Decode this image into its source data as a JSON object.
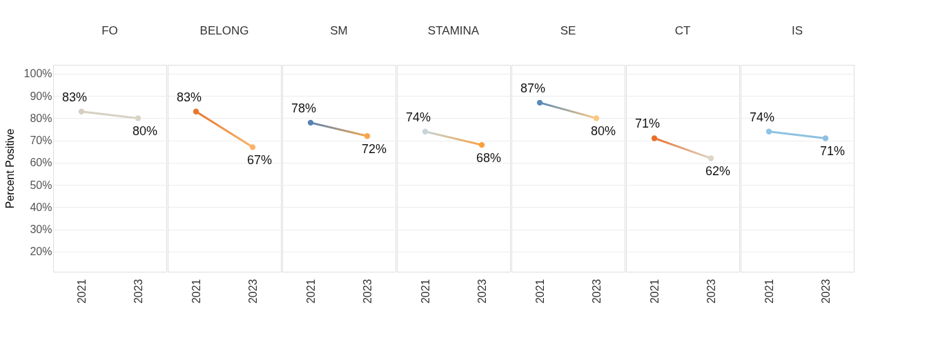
{
  "chart_data": [
    {
      "type": "line",
      "title": "FO",
      "ylabel": "Percent Positive",
      "categories": [
        "2021",
        "2023"
      ],
      "ylim": [
        11,
        104
      ],
      "yticks": [
        {
          "value": 20,
          "label": "20%"
        },
        {
          "value": 30,
          "label": "30%"
        },
        {
          "value": 40,
          "label": "40%"
        },
        {
          "value": 50,
          "label": "50%"
        },
        {
          "value": 60,
          "label": "60%"
        },
        {
          "value": 70,
          "label": "70%"
        },
        {
          "value": 80,
          "label": "80%"
        },
        {
          "value": 90,
          "label": "90%"
        },
        {
          "value": 100,
          "label": "100%"
        }
      ],
      "grid": "y",
      "marker": "circle",
      "series": [
        {
          "values": [
            83,
            80
          ],
          "colors": [
            "#d4cfc0",
            "#d9d4c6"
          ],
          "value_labels": [
            "83%",
            "80%"
          ]
        }
      ]
    },
    {
      "type": "line",
      "title": "BELONG",
      "tick_labels": "x",
      "categories": [
        "2021",
        "2023"
      ],
      "ylim": [
        11,
        104
      ],
      "yticks": [
        {
          "value": 20,
          "label": null
        },
        {
          "value": 30,
          "label": null
        },
        {
          "value": 40,
          "label": null
        },
        {
          "value": 50,
          "label": null
        },
        {
          "value": 60,
          "label": null
        },
        {
          "value": 70,
          "label": null
        },
        {
          "value": 80,
          "label": null
        },
        {
          "value": 90,
          "label": null
        },
        {
          "value": 100,
          "label": null
        }
      ],
      "grid": "y",
      "marker": "circle",
      "series": [
        {
          "values": [
            83,
            67
          ],
          "colors": [
            "#e8762d",
            "#f9b36a"
          ],
          "value_labels": [
            "83%",
            "67%"
          ]
        }
      ]
    },
    {
      "type": "line",
      "title": "SM",
      "tick_labels": "x",
      "categories": [
        "2021",
        "2023"
      ],
      "ylim": [
        11,
        104
      ],
      "yticks": [
        {
          "value": 20,
          "label": null
        },
        {
          "value": 30,
          "label": null
        },
        {
          "value": 40,
          "label": null
        },
        {
          "value": 50,
          "label": null
        },
        {
          "value": 60,
          "label": null
        },
        {
          "value": 70,
          "label": null
        },
        {
          "value": 80,
          "label": null
        },
        {
          "value": 90,
          "label": null
        },
        {
          "value": 100,
          "label": null
        }
      ],
      "grid": "y",
      "marker": "circle",
      "series": [
        {
          "values": [
            78,
            72
          ],
          "colors": [
            "#5583b5",
            "#f7a54c"
          ],
          "value_labels": [
            "78%",
            "72%"
          ]
        }
      ]
    },
    {
      "type": "line",
      "title": "STAMINA",
      "tick_labels": "x",
      "categories": [
        "2021",
        "2023"
      ],
      "ylim": [
        11,
        104
      ],
      "yticks": [
        {
          "value": 20,
          "label": null
        },
        {
          "value": 30,
          "label": null
        },
        {
          "value": 40,
          "label": null
        },
        {
          "value": 50,
          "label": null
        },
        {
          "value": 60,
          "label": null
        },
        {
          "value": 70,
          "label": null
        },
        {
          "value": 80,
          "label": null
        },
        {
          "value": 90,
          "label": null
        },
        {
          "value": 100,
          "label": null
        }
      ],
      "grid": "y",
      "marker": "circle",
      "series": [
        {
          "values": [
            74,
            68
          ],
          "colors": [
            "#c5d6d9",
            "#f7a040"
          ],
          "value_labels": [
            "74%",
            "68%"
          ]
        }
      ]
    },
    {
      "type": "line",
      "title": "SE",
      "tick_labels": "x",
      "categories": [
        "2021",
        "2023"
      ],
      "ylim": [
        11,
        104
      ],
      "yticks": [
        {
          "value": 20,
          "label": null
        },
        {
          "value": 30,
          "label": null
        },
        {
          "value": 40,
          "label": null
        },
        {
          "value": 50,
          "label": null
        },
        {
          "value": 60,
          "label": null
        },
        {
          "value": 70,
          "label": null
        },
        {
          "value": 80,
          "label": null
        },
        {
          "value": 90,
          "label": null
        },
        {
          "value": 100,
          "label": null
        }
      ],
      "grid": "y",
      "marker": "circle",
      "series": [
        {
          "values": [
            87,
            80
          ],
          "colors": [
            "#5a8bbb",
            "#fac880"
          ],
          "value_labels": [
            "87%",
            "80%"
          ]
        }
      ]
    },
    {
      "type": "line",
      "title": "CT",
      "tick_labels": "x",
      "categories": [
        "2021",
        "2023"
      ],
      "ylim": [
        11,
        104
      ],
      "yticks": [
        {
          "value": 20,
          "label": null
        },
        {
          "value": 30,
          "label": null
        },
        {
          "value": 40,
          "label": null
        },
        {
          "value": 50,
          "label": null
        },
        {
          "value": 60,
          "label": null
        },
        {
          "value": 70,
          "label": null
        },
        {
          "value": 80,
          "label": null
        },
        {
          "value": 90,
          "label": null
        },
        {
          "value": 100,
          "label": null
        }
      ],
      "grid": "y",
      "marker": "circle",
      "series": [
        {
          "values": [
            71,
            62
          ],
          "colors": [
            "#e8702a",
            "#dcd5c8"
          ],
          "value_labels": [
            "71%",
            "62%"
          ]
        }
      ]
    },
    {
      "type": "line",
      "title": "IS",
      "tick_labels": "x",
      "categories": [
        "2021",
        "2023"
      ],
      "ylim": [
        11,
        104
      ],
      "yticks": [
        {
          "value": 20,
          "label": null
        },
        {
          "value": 30,
          "label": null
        },
        {
          "value": 40,
          "label": null
        },
        {
          "value": 50,
          "label": null
        },
        {
          "value": 60,
          "label": null
        },
        {
          "value": 70,
          "label": null
        },
        {
          "value": 80,
          "label": null
        },
        {
          "value": 90,
          "label": null
        },
        {
          "value": 100,
          "label": null
        }
      ],
      "grid": "y",
      "marker": "circle",
      "series": [
        {
          "values": [
            74,
            71
          ],
          "colors": [
            "#8ec4e4",
            "#8fbfe0"
          ],
          "value_labels": [
            "74%",
            "71%"
          ]
        }
      ]
    }
  ]
}
